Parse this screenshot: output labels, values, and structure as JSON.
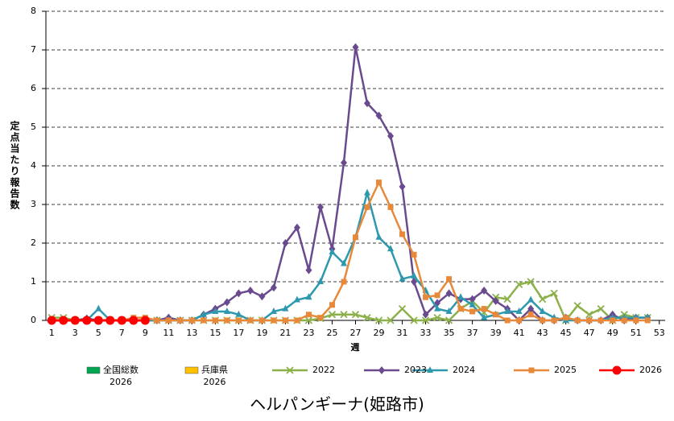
{
  "chart_data": {
    "type": "line",
    "title": "ヘルパンギーナ(姫路市)",
    "x_label": "週",
    "y_label": "定点当たり報告数",
    "x": [
      1,
      2,
      3,
      4,
      5,
      6,
      7,
      8,
      9,
      10,
      11,
      12,
      13,
      14,
      15,
      16,
      17,
      18,
      19,
      20,
      21,
      22,
      23,
      24,
      25,
      26,
      27,
      28,
      29,
      30,
      31,
      32,
      33,
      34,
      35,
      36,
      37,
      38,
      39,
      40,
      41,
      42,
      43,
      44,
      45,
      46,
      47,
      48,
      49,
      50,
      51,
      52,
      53
    ],
    "xlim": [
      0.5,
      53.5
    ],
    "xticks": [
      1,
      3,
      5,
      7,
      9,
      11,
      13,
      15,
      17,
      19,
      21,
      23,
      25,
      27,
      29,
      31,
      33,
      35,
      37,
      39,
      41,
      43,
      45,
      47,
      49,
      51,
      53
    ],
    "ylim": [
      0,
      8
    ],
    "yticks": [
      0,
      1,
      2,
      3,
      4,
      5,
      6,
      7,
      8
    ],
    "grid": true,
    "series": [
      {
        "name": "全国総数\n2026",
        "color": "#00a550",
        "marker": "box",
        "values": [
          null,
          null,
          null,
          null,
          null,
          null,
          null,
          null,
          null,
          null,
          null,
          null,
          null,
          null,
          null,
          null,
          null,
          null,
          null,
          null,
          null,
          null,
          null,
          null,
          null,
          null,
          null,
          null,
          null,
          null,
          null,
          null,
          null,
          null,
          null,
          null,
          null,
          null,
          null,
          null,
          null,
          null,
          null,
          null,
          null,
          null,
          null,
          null,
          null,
          null,
          null,
          null,
          null
        ]
      },
      {
        "name": "兵庫県\n2026",
        "color": "#ffc000",
        "marker": "box",
        "values": [
          null,
          null,
          null,
          null,
          null,
          null,
          null,
          null,
          null,
          null,
          null,
          null,
          null,
          null,
          null,
          null,
          null,
          null,
          null,
          null,
          null,
          null,
          null,
          null,
          null,
          null,
          null,
          null,
          null,
          null,
          null,
          null,
          null,
          null,
          null,
          null,
          null,
          null,
          null,
          null,
          null,
          null,
          null,
          null,
          null,
          null,
          null,
          null,
          null,
          null,
          null,
          null,
          null
        ]
      },
      {
        "name": "2022",
        "color": "#8cb04a",
        "marker": "x",
        "values": [
          0.07,
          0.07,
          0,
          0,
          0,
          0,
          0,
          0,
          0,
          0,
          0,
          0,
          0,
          0,
          0,
          0,
          0,
          0,
          0,
          0,
          0,
          0,
          0,
          0.05,
          0.15,
          0.15,
          0.15,
          0.07,
          0,
          0,
          0.3,
          0,
          0,
          0.07,
          0,
          0.3,
          0.5,
          0.2,
          0.6,
          0.55,
          0.93,
          1.0,
          0.55,
          0.7,
          0,
          0.38,
          0.15,
          0.3,
          0,
          0.15,
          0.07,
          0.07,
          null
        ]
      },
      {
        "name": "2023",
        "color": "#6a4a8e",
        "marker": "diamond",
        "values": [
          0,
          0,
          0,
          0.05,
          0,
          0,
          0,
          0,
          0,
          0,
          0.07,
          0,
          0,
          0.15,
          0.3,
          0.47,
          0.7,
          0.77,
          0.62,
          0.85,
          2.0,
          2.4,
          1.3,
          2.93,
          1.85,
          4.08,
          7.07,
          5.62,
          5.3,
          4.77,
          3.46,
          1.0,
          0.15,
          0.45,
          0.7,
          0.55,
          0.55,
          0.77,
          0.5,
          0.3,
          0,
          0.3,
          0,
          0,
          0.07,
          0,
          0,
          0,
          0.15,
          0,
          0.07,
          0.07,
          null
        ]
      },
      {
        "name": "2024",
        "color": "#2e98ae",
        "marker": "triangle",
        "values": [
          0,
          0,
          0,
          0,
          0.3,
          0,
          0,
          0,
          0,
          0,
          0,
          0,
          0,
          0.15,
          0.23,
          0.23,
          0.15,
          0,
          0,
          0.23,
          0.3,
          0.53,
          0.6,
          1.0,
          1.77,
          1.47,
          2.15,
          3.3,
          2.15,
          1.85,
          1.07,
          1.15,
          0.77,
          0.3,
          0.23,
          0.6,
          0.4,
          0.07,
          0.15,
          0.23,
          0.23,
          0.53,
          0.23,
          0.07,
          0,
          0,
          0,
          0,
          0.07,
          0.07,
          0.07,
          0.07,
          null
        ]
      },
      {
        "name": "2025",
        "color": "#e8883a",
        "marker": "square",
        "values": [
          0,
          0,
          0,
          0,
          0,
          0,
          0,
          0.07,
          0.07,
          0,
          0,
          0,
          0,
          0,
          0,
          0,
          0,
          0,
          0,
          0,
          0,
          0,
          0.15,
          0.07,
          0.4,
          1.0,
          2.15,
          2.93,
          3.57,
          2.93,
          2.23,
          1.7,
          0.6,
          0.65,
          1.07,
          0.3,
          0.23,
          0.3,
          0.15,
          0,
          0,
          0.15,
          0,
          0,
          0.07,
          0,
          0,
          0,
          0,
          0,
          0,
          0,
          null
        ]
      },
      {
        "name": "2026",
        "color": "#ff0000",
        "marker": "circle",
        "values": [
          0,
          0,
          0,
          0,
          0,
          0,
          0,
          0,
          0,
          null,
          null,
          null,
          null,
          null,
          null,
          null,
          null,
          null,
          null,
          null,
          null,
          null,
          null,
          null,
          null,
          null,
          null,
          null,
          null,
          null,
          null,
          null,
          null,
          null,
          null,
          null,
          null,
          null,
          null,
          null,
          null,
          null,
          null,
          null,
          null,
          null,
          null,
          null,
          null,
          null,
          null,
          null,
          null
        ]
      }
    ]
  }
}
